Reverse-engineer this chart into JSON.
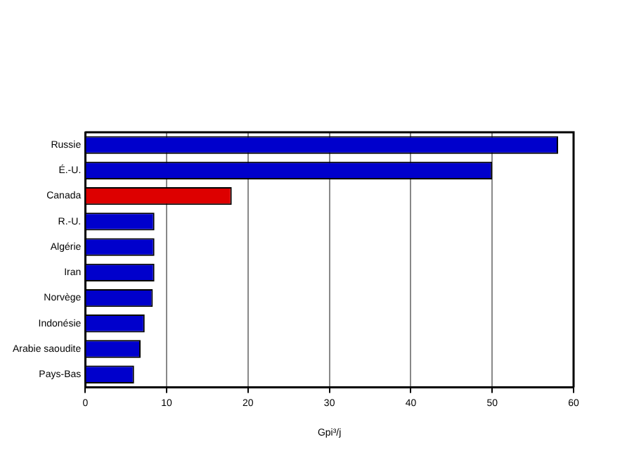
{
  "chart_data": {
    "type": "bar",
    "orientation": "horizontal",
    "xlabel": "Gpi³/j",
    "categories": [
      "Russie",
      "É.-U.",
      "Canada",
      "R.-U.",
      "Algérie",
      "Iran",
      "Norvège",
      "Indonésie",
      "Arabie saoudite",
      "Pays-Bas"
    ],
    "values": [
      58.1,
      50.0,
      18.0,
      8.5,
      8.5,
      8.5,
      8.3,
      7.3,
      6.8,
      6.0
    ],
    "colors": [
      "#0000cc",
      "#0000cc",
      "#dd0000",
      "#0000cc",
      "#0000cc",
      "#0000cc",
      "#0000cc",
      "#0000cc",
      "#0000cc",
      "#0000cc"
    ],
    "xlim": [
      0,
      60
    ],
    "xticks": [
      0,
      10,
      20,
      30,
      40,
      50,
      60
    ],
    "grid": "x",
    "legend": false
  }
}
